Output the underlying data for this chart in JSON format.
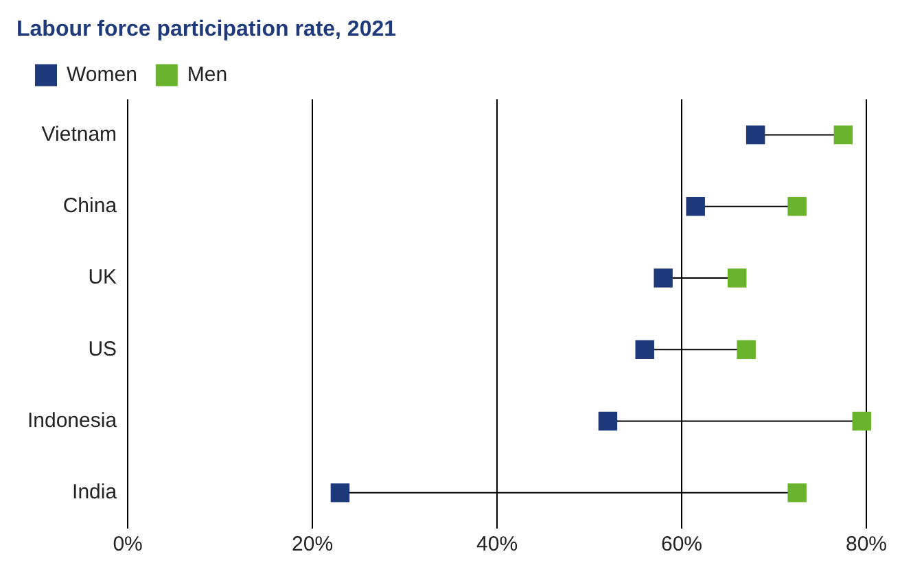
{
  "chart_data": {
    "type": "scatter",
    "title": "Labour force participation rate, 2021",
    "orientation": "horizontal",
    "categories": [
      "Vietnam",
      "China",
      "UK",
      "US",
      "Indonesia",
      "India"
    ],
    "series": [
      {
        "name": "Women",
        "color": "#1f3a7a",
        "values": [
          68,
          61.5,
          58,
          56,
          52,
          23
        ]
      },
      {
        "name": "Men",
        "color": "#6ab42d",
        "values": [
          77.5,
          72.5,
          66,
          67,
          79.5,
          72.5
        ]
      }
    ],
    "xlim": [
      0,
      80
    ],
    "xticks": [
      {
        "value": 0,
        "label": "0%"
      },
      {
        "value": 20,
        "label": "20%"
      },
      {
        "value": 40,
        "label": "40%"
      },
      {
        "value": 60,
        "label": "60%"
      },
      {
        "value": 80,
        "label": "80%"
      }
    ],
    "grid": "x",
    "legend": "top left",
    "marker": "square"
  }
}
